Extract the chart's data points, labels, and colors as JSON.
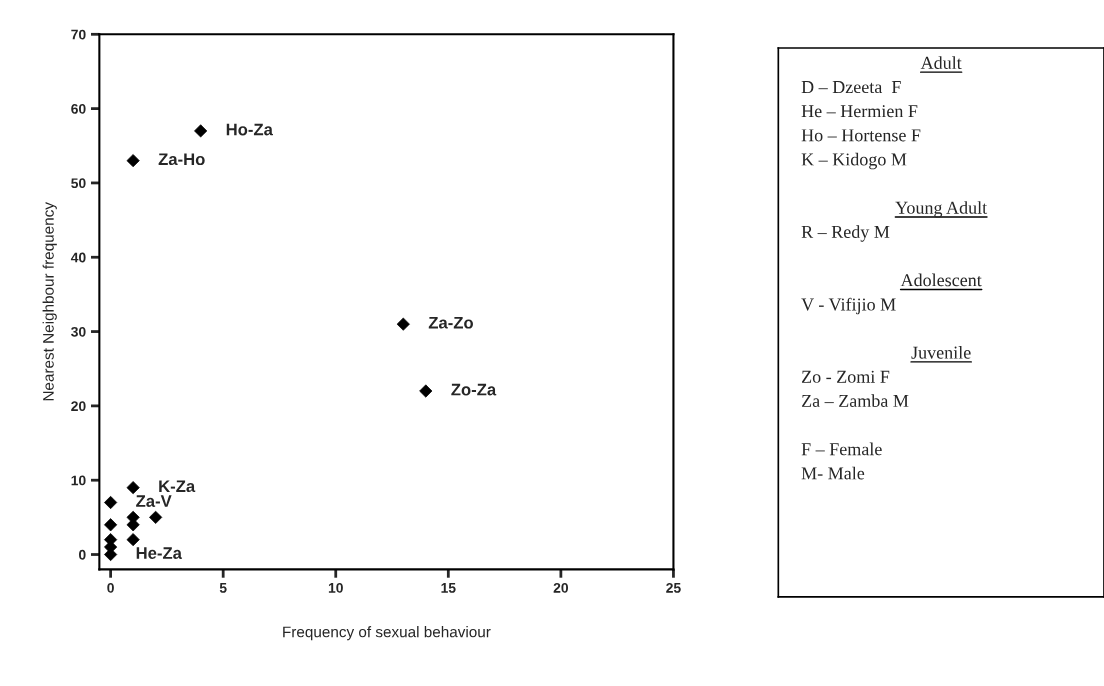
{
  "chart_data": {
    "type": "scatter",
    "xlabel": "Frequency of sexual behaviour",
    "ylabel": "Nearest Neighbour frequency",
    "x": [
      4,
      1,
      13,
      14,
      1,
      0,
      1,
      2,
      0,
      1,
      1,
      0,
      0,
      0
    ],
    "series": [
      {
        "color": "#000000",
        "values": [
          57,
          53,
          31,
          22,
          9,
          7,
          5,
          5,
          4,
          4,
          2,
          2,
          1,
          0
        ]
      }
    ],
    "marker": "diamond",
    "grid": false,
    "legend": false,
    "xlim": [
      -0.5,
      25
    ],
    "ylim": [
      -2,
      70
    ],
    "xticks": [
      0,
      5,
      10,
      15,
      20,
      25
    ],
    "yticks": [
      0,
      10,
      20,
      30,
      40,
      50,
      60,
      70
    ],
    "annotations": [
      {
        "text": "Ho-Za",
        "x": 4,
        "y": 57
      },
      {
        "text": "Za-Ho",
        "x": 1,
        "y": 53
      },
      {
        "text": "Za-Zo",
        "x": 13,
        "y": 31
      },
      {
        "text": "Zo-Za",
        "x": 14,
        "y": 22
      },
      {
        "text": "K-Za",
        "x": 1,
        "y": 9
      },
      {
        "text": "Za-V",
        "x": 0,
        "y": 7
      },
      {
        "text": "He-Za",
        "x": 0,
        "y": 0
      },
      "Adult\nD – Dzeeta  F\nHe – Hermien F\nHo – Hortense F\nK – Kidogo M",
      "Young Adult\nR – Redy M",
      "Adolescent\nV - Vifijio M",
      "Juvenile\nZo - Zomi F\nZa – Zamba M",
      "F – Female\nM- Male"
    ]
  }
}
